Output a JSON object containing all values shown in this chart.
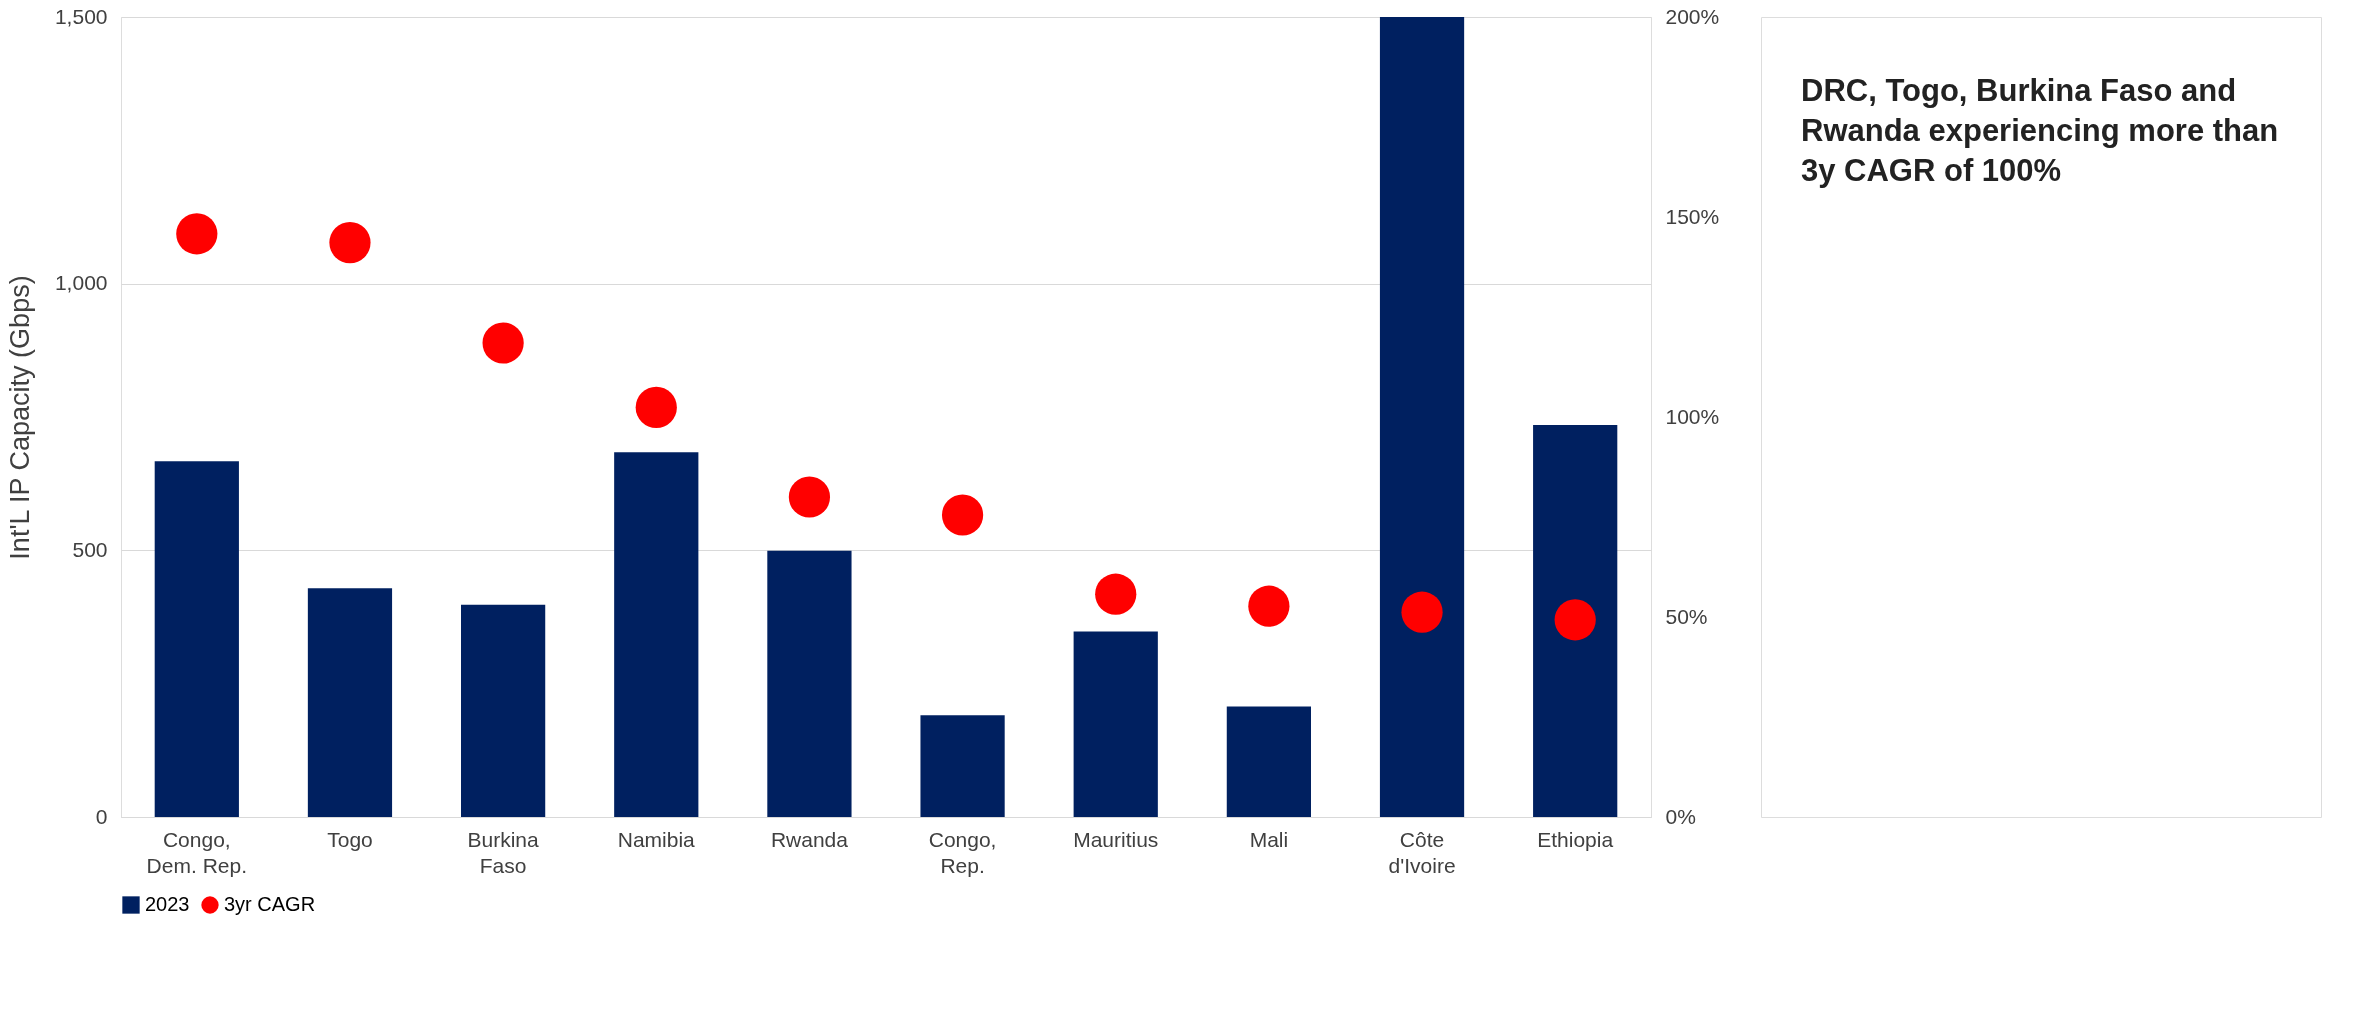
{
  "chart_data": {
    "type": "bar",
    "ylabel": "Int'L IP Capacity (Gbps)",
    "categories": [
      "Congo, Dem. Rep.",
      "Togo",
      "Burkina Faso",
      "Namibia",
      "Rwanda",
      "Congo, Rep.",
      "Mauritius",
      "Mali",
      "Côte d'Ivoire",
      "Ethiopia"
    ],
    "series": [
      {
        "name": "2023",
        "color": "#002060",
        "values": [
          667,
          429,
          398,
          684,
          499,
          191,
          348,
          207,
          1500,
          735
        ]
      },
      {
        "name": "3yr CAGR",
        "type": "scatter",
        "axis": "y2",
        "color": "#ff0000",
        "values": [
          145.8,
          143.6,
          118.5,
          102.4,
          80,
          75.5,
          55.7,
          52.7,
          51.2,
          49.3
        ]
      }
    ],
    "ylim": [
      0,
      1500
    ],
    "yticks": [
      0,
      500,
      {
        "value": 1000,
        "label": "1,000"
      },
      {
        "value": 1500,
        "label": "1,500"
      }
    ],
    "y2lim": [
      0,
      200
    ],
    "y2ticks": [
      {
        "value": 0,
        "label": "0%"
      },
      {
        "value": 50,
        "label": "50%"
      },
      {
        "value": 100,
        "label": "100%"
      },
      {
        "value": 150,
        "label": "150%"
      },
      {
        "value": 200,
        "label": "200%"
      }
    ],
    "grid": "y",
    "legend": "bottom",
    "marker": "circle",
    "annotations": [
      "DRC, Togo, Burkina Faso and Rwanda experiencing more than 3y CAGR of 100%"
    ]
  }
}
